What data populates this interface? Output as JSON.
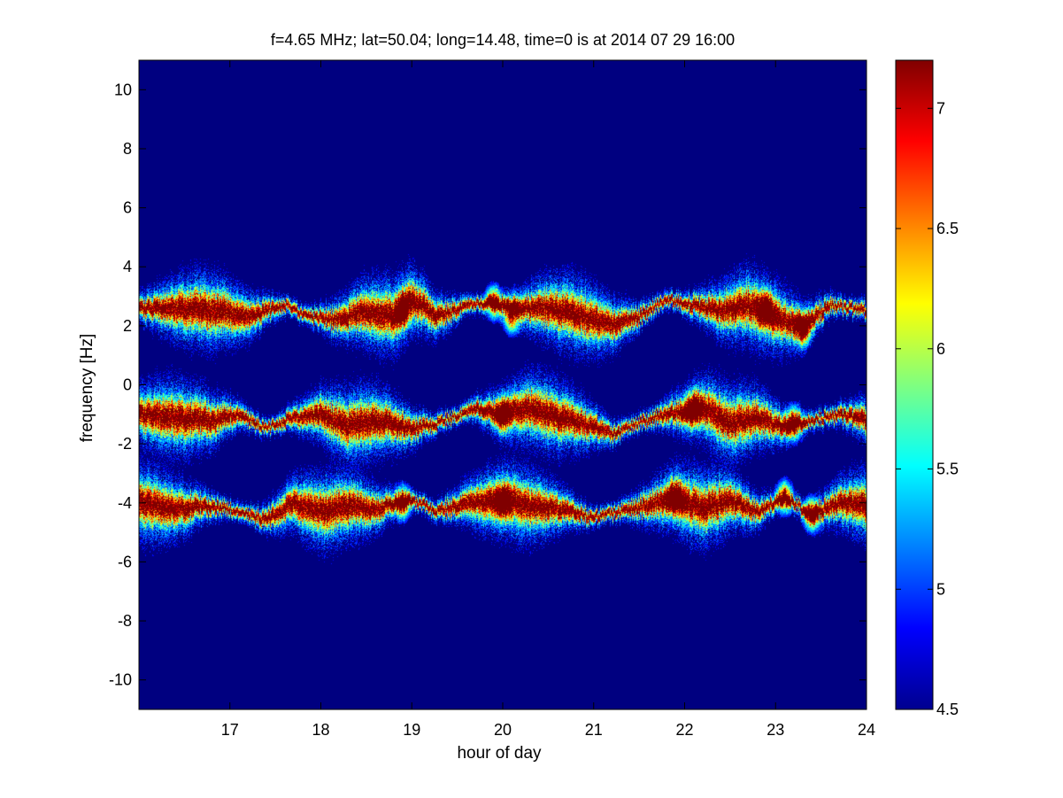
{
  "chart_data": {
    "type": "heatmap",
    "title": "f=4.65 MHz;  lat=50.04; long=14.48, time=0 is at 2014 07 29 16:00",
    "xlabel": "hour of day",
    "ylabel": "frequency [Hz]",
    "xlim": [
      16.0,
      24.0
    ],
    "ylim": [
      -11.0,
      11.0
    ],
    "x_ticks": [
      17,
      18,
      19,
      20,
      21,
      22,
      23,
      24
    ],
    "y_ticks": [
      -10,
      -8,
      -6,
      -4,
      -2,
      0,
      2,
      4,
      6,
      8,
      10
    ],
    "colorbar": {
      "colormap": "jet",
      "clim": [
        4.5,
        7.2
      ],
      "ticks": [
        4.5,
        5,
        5.5,
        6,
        6.5,
        7
      ]
    },
    "background_value": 4.5,
    "bands": [
      {
        "center_hz": 2.6,
        "path": [
          [
            16.0,
            2.6
          ],
          [
            16.5,
            2.6
          ],
          [
            16.9,
            2.5
          ],
          [
            17.2,
            2.3
          ],
          [
            17.6,
            2.7
          ],
          [
            17.9,
            2.3
          ],
          [
            18.2,
            2.2
          ],
          [
            18.5,
            2.5
          ],
          [
            18.8,
            2.3
          ],
          [
            19.0,
            2.9
          ],
          [
            19.3,
            2.3
          ],
          [
            19.6,
            2.7
          ],
          [
            19.9,
            2.8
          ],
          [
            20.1,
            2.6
          ],
          [
            20.5,
            2.6
          ],
          [
            20.9,
            2.3
          ],
          [
            21.2,
            2.0
          ],
          [
            21.5,
            2.3
          ],
          [
            21.8,
            2.9
          ],
          [
            22.1,
            2.7
          ],
          [
            22.4,
            2.5
          ],
          [
            22.7,
            2.7
          ],
          [
            23.0,
            2.3
          ],
          [
            23.3,
            2.0
          ],
          [
            23.6,
            2.7
          ],
          [
            24.0,
            2.5
          ]
        ],
        "hot_spots": [
          [
            18.9,
            2.5
          ],
          [
            19.9,
            2.8
          ],
          [
            20.1,
            2.3
          ],
          [
            23.3,
            1.9
          ],
          [
            22.9,
            2.6
          ]
        ]
      },
      {
        "center_hz": -1.2,
        "path": [
          [
            16.0,
            -1.0
          ],
          [
            16.4,
            -1.1
          ],
          [
            16.8,
            -1.2
          ],
          [
            17.1,
            -1.0
          ],
          [
            17.4,
            -1.5
          ],
          [
            17.7,
            -1.1
          ],
          [
            18.0,
            -1.0
          ],
          [
            18.3,
            -1.4
          ],
          [
            18.6,
            -1.2
          ],
          [
            19.0,
            -1.5
          ],
          [
            19.3,
            -1.3
          ],
          [
            19.7,
            -0.8
          ],
          [
            20.0,
            -1.0
          ],
          [
            20.3,
            -0.8
          ],
          [
            20.6,
            -1.1
          ],
          [
            21.0,
            -1.4
          ],
          [
            21.2,
            -1.7
          ],
          [
            21.5,
            -1.3
          ],
          [
            21.8,
            -1.0
          ],
          [
            22.2,
            -0.8
          ],
          [
            22.5,
            -1.3
          ],
          [
            22.8,
            -1.1
          ],
          [
            23.1,
            -1.4
          ],
          [
            23.4,
            -1.2
          ],
          [
            23.7,
            -1.0
          ],
          [
            24.0,
            -1.2
          ]
        ],
        "hot_spots": [
          [
            20.0,
            -1.0
          ],
          [
            22.1,
            -0.8
          ],
          [
            23.2,
            -1.3
          ]
        ]
      },
      {
        "center_hz": -4.1,
        "path": [
          [
            16.0,
            -4.0
          ],
          [
            16.4,
            -4.2
          ],
          [
            16.8,
            -4.1
          ],
          [
            17.1,
            -4.3
          ],
          [
            17.4,
            -4.6
          ],
          [
            17.7,
            -4.0
          ],
          [
            18.0,
            -4.3
          ],
          [
            18.3,
            -4.1
          ],
          [
            18.6,
            -4.2
          ],
          [
            19.0,
            -3.9
          ],
          [
            19.3,
            -4.3
          ],
          [
            19.6,
            -4.0
          ],
          [
            20.0,
            -3.9
          ],
          [
            20.3,
            -4.1
          ],
          [
            20.6,
            -4.2
          ],
          [
            21.0,
            -4.5
          ],
          [
            21.3,
            -4.3
          ],
          [
            21.6,
            -4.1
          ],
          [
            21.9,
            -3.8
          ],
          [
            22.2,
            -4.2
          ],
          [
            22.5,
            -3.9
          ],
          [
            22.8,
            -4.3
          ],
          [
            23.1,
            -3.8
          ],
          [
            23.4,
            -4.4
          ],
          [
            23.7,
            -4.0
          ],
          [
            24.0,
            -4.1
          ]
        ],
        "hot_spots": [
          [
            18.9,
            -4.0
          ],
          [
            20.0,
            -4.0
          ],
          [
            21.9,
            -3.9
          ],
          [
            23.1,
            -3.8
          ],
          [
            23.4,
            -4.4
          ]
        ]
      }
    ]
  }
}
